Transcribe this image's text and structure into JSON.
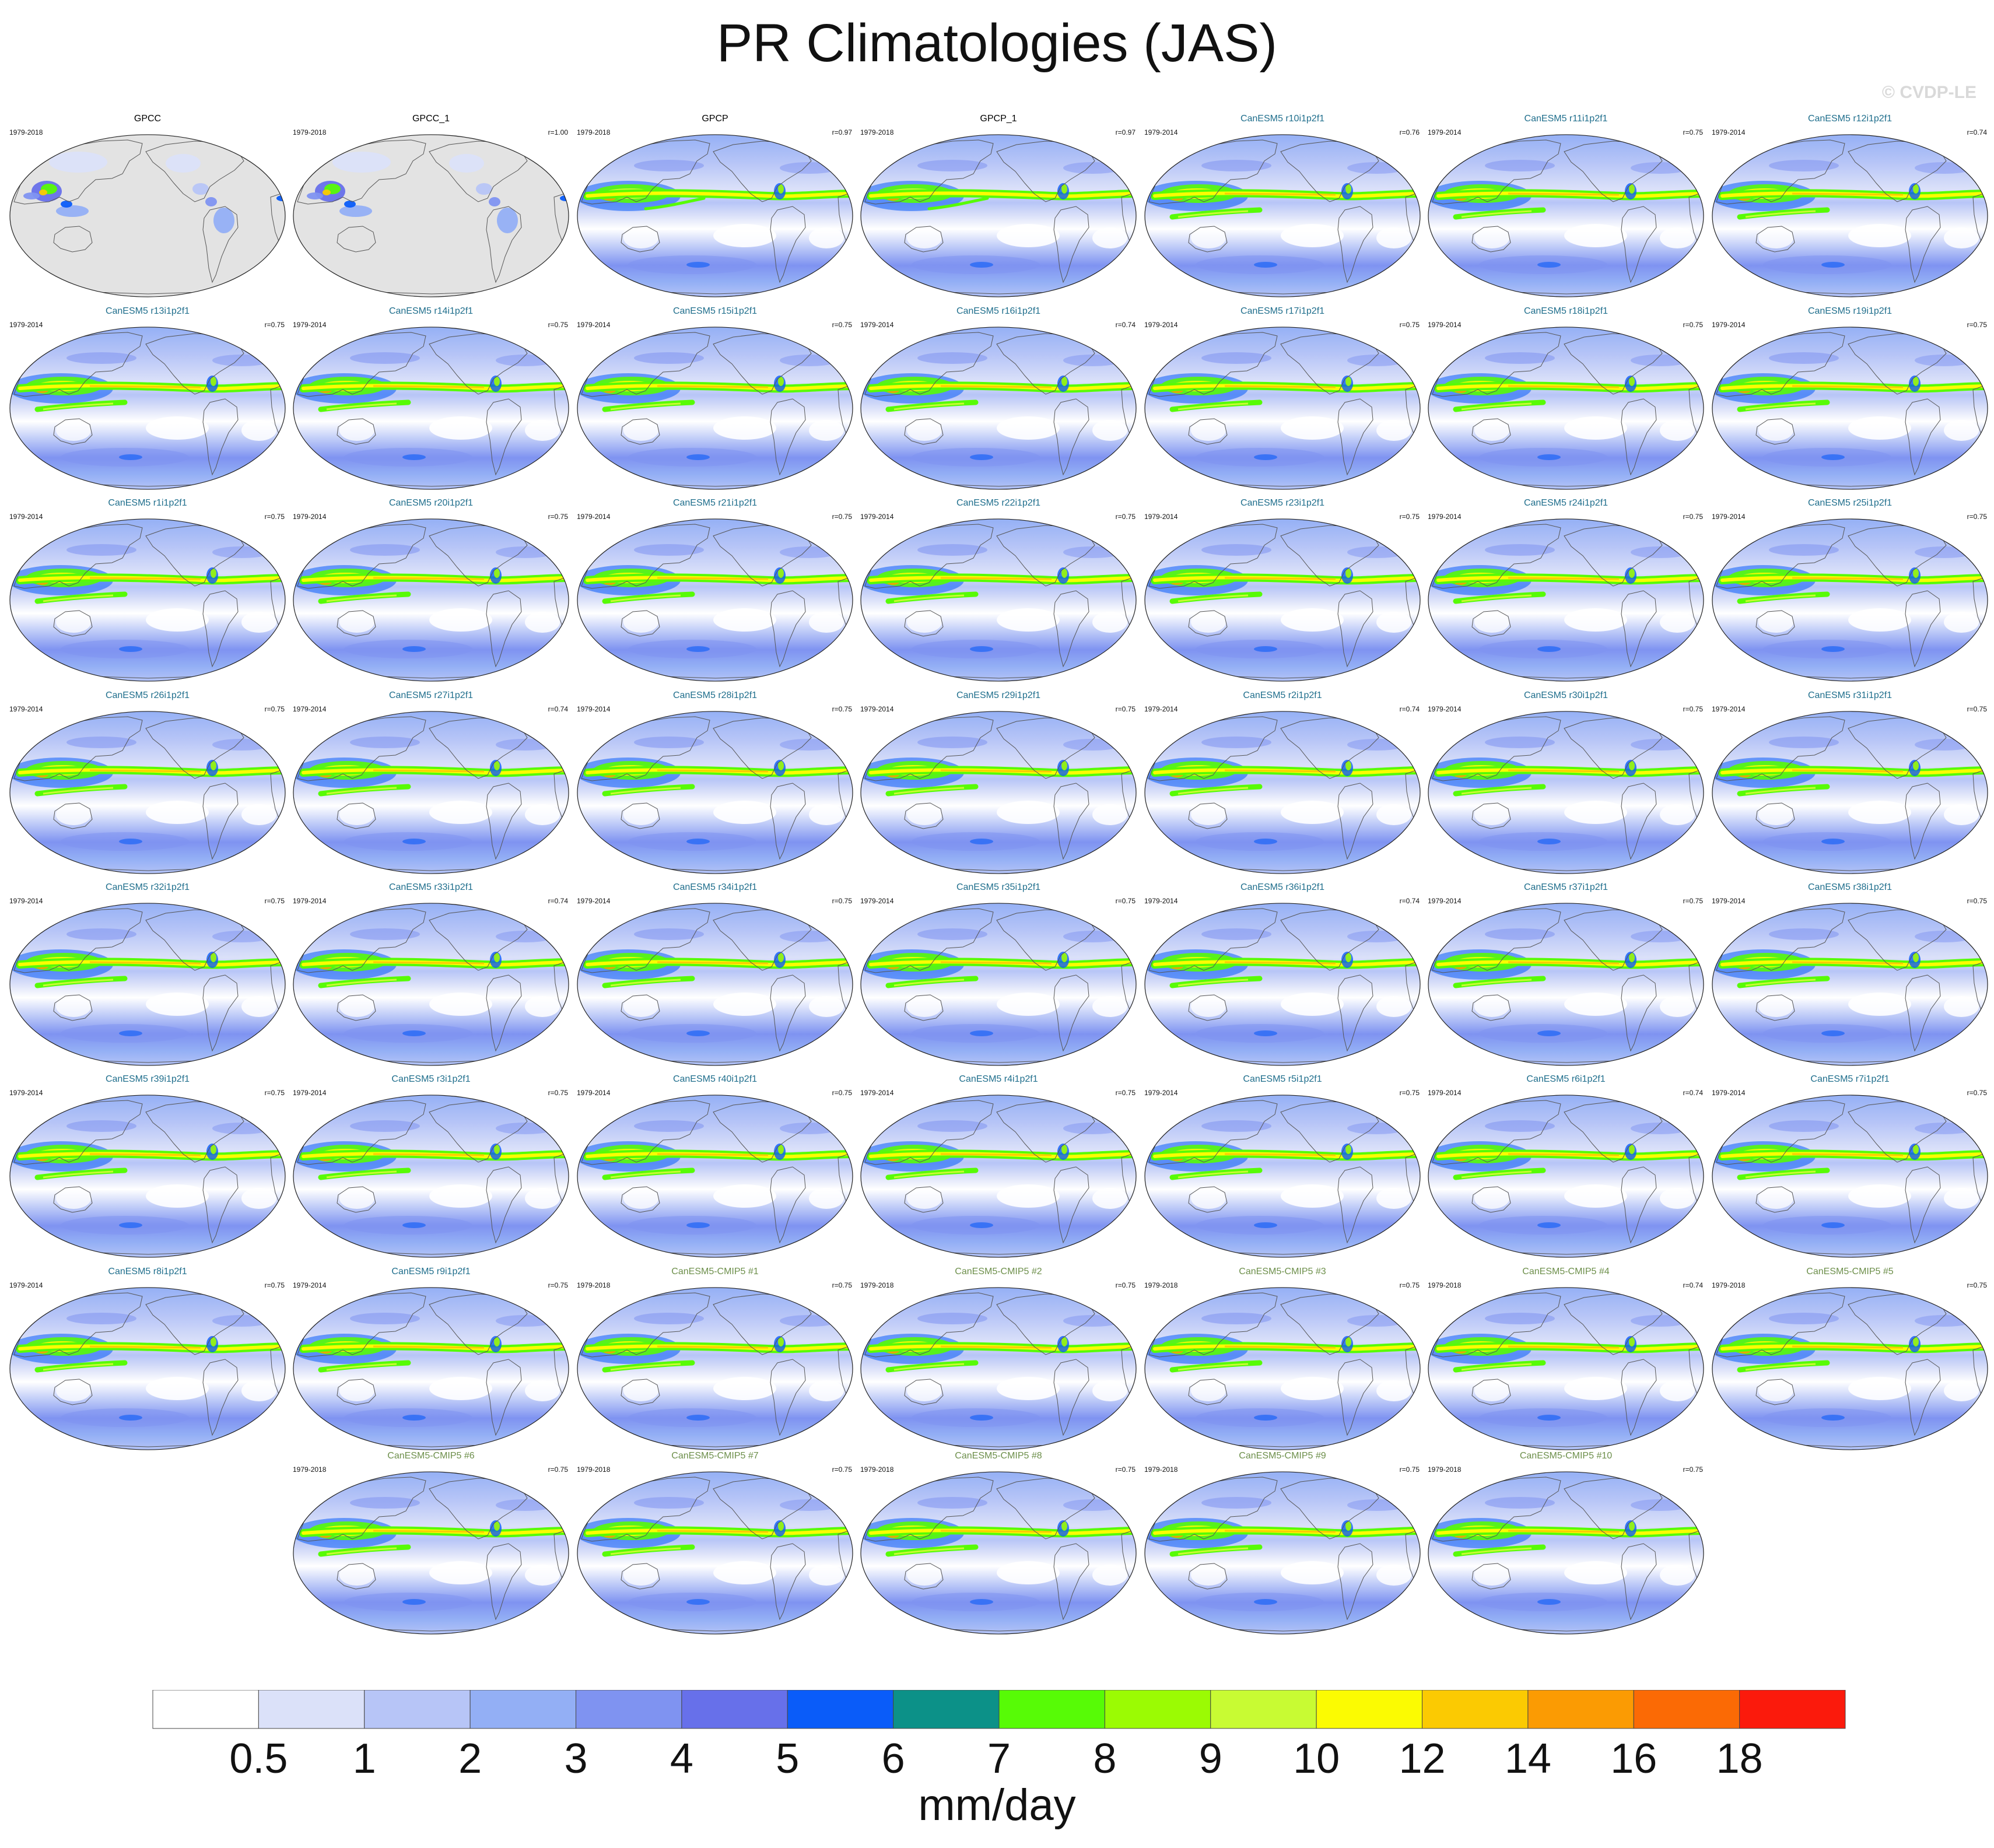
{
  "title": "PR Climatologies (JAS)",
  "watermark": "© CVDP-LE",
  "colors": {
    "obs_title": "#000000",
    "member_title": "#1f6e8c",
    "cmip5_title": "#6d8f4b",
    "land_fill": "#e3e3e3",
    "coastline": "#555555"
  },
  "chart_data": {
    "type": "heatmap",
    "projection": "robinson",
    "map_center": "Pacific",
    "variable": "PR",
    "season": "JAS",
    "panels": [
      {
        "title": "GPCC",
        "years": "1979-2018",
        "r": "",
        "kind": "obs_land"
      },
      {
        "title": "GPCC_1",
        "years": "1979-2018",
        "r": "r=1.00",
        "kind": "obs_land"
      },
      {
        "title": "GPCP",
        "years": "1979-2018",
        "r": "r=0.97",
        "kind": "obs"
      },
      {
        "title": "GPCP_1",
        "years": "1979-2018",
        "r": "r=0.97",
        "kind": "obs"
      },
      {
        "title": "CanESM5 r10i1p2f1",
        "years": "1979-2014",
        "r": "r=0.76",
        "kind": "member"
      },
      {
        "title": "CanESM5 r11i1p2f1",
        "years": "1979-2014",
        "r": "r=0.75",
        "kind": "member"
      },
      {
        "title": "CanESM5 r12i1p2f1",
        "years": "1979-2014",
        "r": "r=0.74",
        "kind": "member"
      },
      {
        "title": "CanESM5 r13i1p2f1",
        "years": "1979-2014",
        "r": "r=0.75",
        "kind": "member"
      },
      {
        "title": "CanESM5 r14i1p2f1",
        "years": "1979-2014",
        "r": "r=0.75",
        "kind": "member"
      },
      {
        "title": "CanESM5 r15i1p2f1",
        "years": "1979-2014",
        "r": "r=0.75",
        "kind": "member"
      },
      {
        "title": "CanESM5 r16i1p2f1",
        "years": "1979-2014",
        "r": "r=0.74",
        "kind": "member"
      },
      {
        "title": "CanESM5 r17i1p2f1",
        "years": "1979-2014",
        "r": "r=0.75",
        "kind": "member"
      },
      {
        "title": "CanESM5 r18i1p2f1",
        "years": "1979-2014",
        "r": "r=0.75",
        "kind": "member"
      },
      {
        "title": "CanESM5 r19i1p2f1",
        "years": "1979-2014",
        "r": "r=0.75",
        "kind": "member"
      },
      {
        "title": "CanESM5 r1i1p2f1",
        "years": "1979-2014",
        "r": "r=0.75",
        "kind": "member"
      },
      {
        "title": "CanESM5 r20i1p2f1",
        "years": "1979-2014",
        "r": "r=0.75",
        "kind": "member"
      },
      {
        "title": "CanESM5 r21i1p2f1",
        "years": "1979-2014",
        "r": "r=0.75",
        "kind": "member"
      },
      {
        "title": "CanESM5 r22i1p2f1",
        "years": "1979-2014",
        "r": "r=0.75",
        "kind": "member"
      },
      {
        "title": "CanESM5 r23i1p2f1",
        "years": "1979-2014",
        "r": "r=0.75",
        "kind": "member"
      },
      {
        "title": "CanESM5 r24i1p2f1",
        "years": "1979-2014",
        "r": "r=0.75",
        "kind": "member"
      },
      {
        "title": "CanESM5 r25i1p2f1",
        "years": "1979-2014",
        "r": "r=0.75",
        "kind": "member"
      },
      {
        "title": "CanESM5 r26i1p2f1",
        "years": "1979-2014",
        "r": "r=0.75",
        "kind": "member"
      },
      {
        "title": "CanESM5 r27i1p2f1",
        "years": "1979-2014",
        "r": "r=0.74",
        "kind": "member"
      },
      {
        "title": "CanESM5 r28i1p2f1",
        "years": "1979-2014",
        "r": "r=0.75",
        "kind": "member"
      },
      {
        "title": "CanESM5 r29i1p2f1",
        "years": "1979-2014",
        "r": "r=0.75",
        "kind": "member"
      },
      {
        "title": "CanESM5 r2i1p2f1",
        "years": "1979-2014",
        "r": "r=0.74",
        "kind": "member"
      },
      {
        "title": "CanESM5 r30i1p2f1",
        "years": "1979-2014",
        "r": "r=0.75",
        "kind": "member"
      },
      {
        "title": "CanESM5 r31i1p2f1",
        "years": "1979-2014",
        "r": "r=0.75",
        "kind": "member"
      },
      {
        "title": "CanESM5 r32i1p2f1",
        "years": "1979-2014",
        "r": "r=0.75",
        "kind": "member"
      },
      {
        "title": "CanESM5 r33i1p2f1",
        "years": "1979-2014",
        "r": "r=0.74",
        "kind": "member"
      },
      {
        "title": "CanESM5 r34i1p2f1",
        "years": "1979-2014",
        "r": "r=0.75",
        "kind": "member"
      },
      {
        "title": "CanESM5 r35i1p2f1",
        "years": "1979-2014",
        "r": "r=0.75",
        "kind": "member"
      },
      {
        "title": "CanESM5 r36i1p2f1",
        "years": "1979-2014",
        "r": "r=0.74",
        "kind": "member"
      },
      {
        "title": "CanESM5 r37i1p2f1",
        "years": "1979-2014",
        "r": "r=0.75",
        "kind": "member"
      },
      {
        "title": "CanESM5 r38i1p2f1",
        "years": "1979-2014",
        "r": "r=0.75",
        "kind": "member"
      },
      {
        "title": "CanESM5 r39i1p2f1",
        "years": "1979-2014",
        "r": "r=0.75",
        "kind": "member"
      },
      {
        "title": "CanESM5 r3i1p2f1",
        "years": "1979-2014",
        "r": "r=0.75",
        "kind": "member"
      },
      {
        "title": "CanESM5 r40i1p2f1",
        "years": "1979-2014",
        "r": "r=0.75",
        "kind": "member"
      },
      {
        "title": "CanESM5 r4i1p2f1",
        "years": "1979-2014",
        "r": "r=0.75",
        "kind": "member"
      },
      {
        "title": "CanESM5 r5i1p2f1",
        "years": "1979-2014",
        "r": "r=0.75",
        "kind": "member"
      },
      {
        "title": "CanESM5 r6i1p2f1",
        "years": "1979-2014",
        "r": "r=0.74",
        "kind": "member"
      },
      {
        "title": "CanESM5 r7i1p2f1",
        "years": "1979-2014",
        "r": "r=0.75",
        "kind": "member"
      },
      {
        "title": "CanESM5 r8i1p2f1",
        "years": "1979-2014",
        "r": "r=0.75",
        "kind": "member"
      },
      {
        "title": "CanESM5 r9i1p2f1",
        "years": "1979-2014",
        "r": "r=0.75",
        "kind": "member"
      },
      {
        "title": "CanESM5-CMIP5 #1",
        "years": "1979-2018",
        "r": "r=0.75",
        "kind": "cmip5"
      },
      {
        "title": "CanESM5-CMIP5 #2",
        "years": "1979-2018",
        "r": "r=0.75",
        "kind": "cmip5"
      },
      {
        "title": "CanESM5-CMIP5 #3",
        "years": "1979-2018",
        "r": "r=0.75",
        "kind": "cmip5"
      },
      {
        "title": "CanESM5-CMIP5 #4",
        "years": "1979-2018",
        "r": "r=0.74",
        "kind": "cmip5"
      },
      {
        "title": "CanESM5-CMIP5 #5",
        "years": "1979-2018",
        "r": "r=0.75",
        "kind": "cmip5"
      },
      {
        "title": "CanESM5-CMIP5 #6",
        "years": "1979-2018",
        "r": "r=0.75",
        "kind": "cmip5"
      },
      {
        "title": "CanESM5-CMIP5 #7",
        "years": "1979-2018",
        "r": "r=0.75",
        "kind": "cmip5"
      },
      {
        "title": "CanESM5-CMIP5 #8",
        "years": "1979-2018",
        "r": "r=0.75",
        "kind": "cmip5"
      },
      {
        "title": "CanESM5-CMIP5 #9",
        "years": "1979-2018",
        "r": "r=0.75",
        "kind": "cmip5"
      },
      {
        "title": "CanESM5-CMIP5 #10",
        "years": "1979-2018",
        "r": "r=0.75",
        "kind": "cmip5"
      }
    ],
    "colorbar": {
      "levels": [
        "0.5",
        "1",
        "2",
        "3",
        "4",
        "5",
        "6",
        "7",
        "8",
        "9",
        "10",
        "12",
        "14",
        "16",
        "18"
      ],
      "colors": [
        "#ffffff",
        "#dbe1f9",
        "#b7c5f7",
        "#93aff5",
        "#7f93f1",
        "#6770ea",
        "#0a5cf9",
        "#0c9188",
        "#57fb06",
        "#9bfb03",
        "#c8fb33",
        "#fbfb02",
        "#fbca02",
        "#fb9b03",
        "#fb6a05",
        "#fb1a0c"
      ],
      "unit": "mm/day"
    }
  }
}
